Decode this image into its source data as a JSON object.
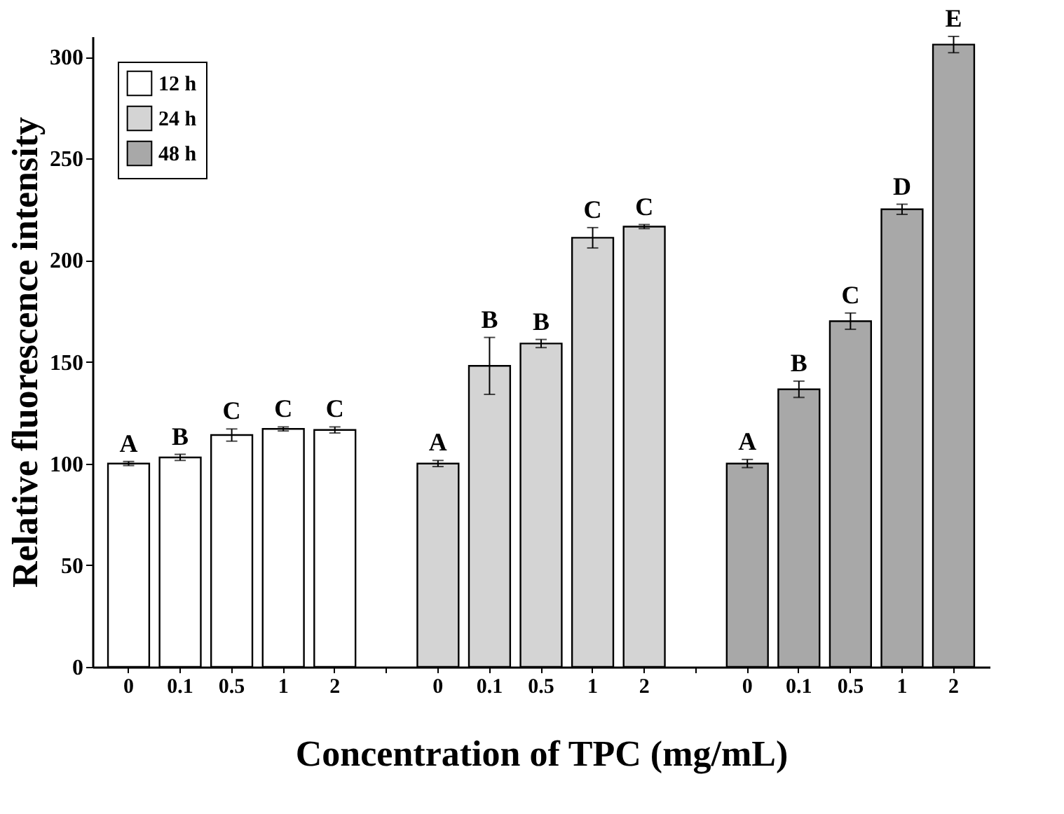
{
  "chart_data": {
    "type": "bar",
    "xlabel": "Concentration of TPC (mg/mL)",
    "ylabel": "Relative fluorescence intensity",
    "categories": [
      "0",
      "0.1",
      "0.5",
      "1",
      "2",
      null,
      "0",
      "0.1",
      "0.5",
      "1",
      "2",
      null,
      "0",
      "0.1",
      "0.5",
      "1",
      "2"
    ],
    "series": [
      {
        "name": "12 h",
        "color": "#ffffff",
        "values": [
          100,
          103,
          114,
          117,
          116.5,
          null,
          null,
          null,
          null,
          null,
          null,
          null,
          null,
          null,
          null,
          null,
          null
        ],
        "errors": [
          1,
          1.5,
          3,
          1,
          1.5,
          null,
          null,
          null,
          null,
          null,
          null,
          null,
          null,
          null,
          null,
          null,
          null
        ],
        "value_labels": [
          "A",
          "B",
          "C",
          "C",
          "C",
          null,
          null,
          null,
          null,
          null,
          null,
          null,
          null,
          null,
          null,
          null,
          null
        ]
      },
      {
        "name": "24 h",
        "color": "#d4d4d4",
        "values": [
          null,
          null,
          null,
          null,
          null,
          null,
          100,
          148,
          159,
          211,
          216.5,
          null,
          null,
          null,
          null,
          null,
          null
        ],
        "errors": [
          null,
          null,
          null,
          null,
          null,
          null,
          1.5,
          14,
          2,
          5,
          1,
          null,
          null,
          null,
          null,
          null,
          null
        ],
        "value_labels": [
          null,
          null,
          null,
          null,
          null,
          null,
          "A",
          "B",
          "B",
          "C",
          "C",
          null,
          null,
          null,
          null,
          null,
          null
        ]
      },
      {
        "name": "48 h",
        "color": "#a8a8a8",
        "values": [
          null,
          null,
          null,
          null,
          null,
          null,
          null,
          null,
          null,
          null,
          null,
          null,
          100,
          136.5,
          170,
          225,
          306
        ],
        "errors": [
          null,
          null,
          null,
          null,
          null,
          null,
          null,
          null,
          null,
          null,
          null,
          null,
          2,
          4,
          4,
          2.5,
          4
        ],
        "value_labels": [
          null,
          null,
          null,
          null,
          null,
          null,
          null,
          null,
          null,
          null,
          null,
          null,
          "A",
          "B",
          "C",
          "D",
          "E"
        ]
      }
    ],
    "ylim": [
      0,
      310
    ],
    "yticks": [
      0,
      50,
      100,
      150,
      200,
      250,
      300
    ],
    "grid": false,
    "legend": "top left"
  }
}
